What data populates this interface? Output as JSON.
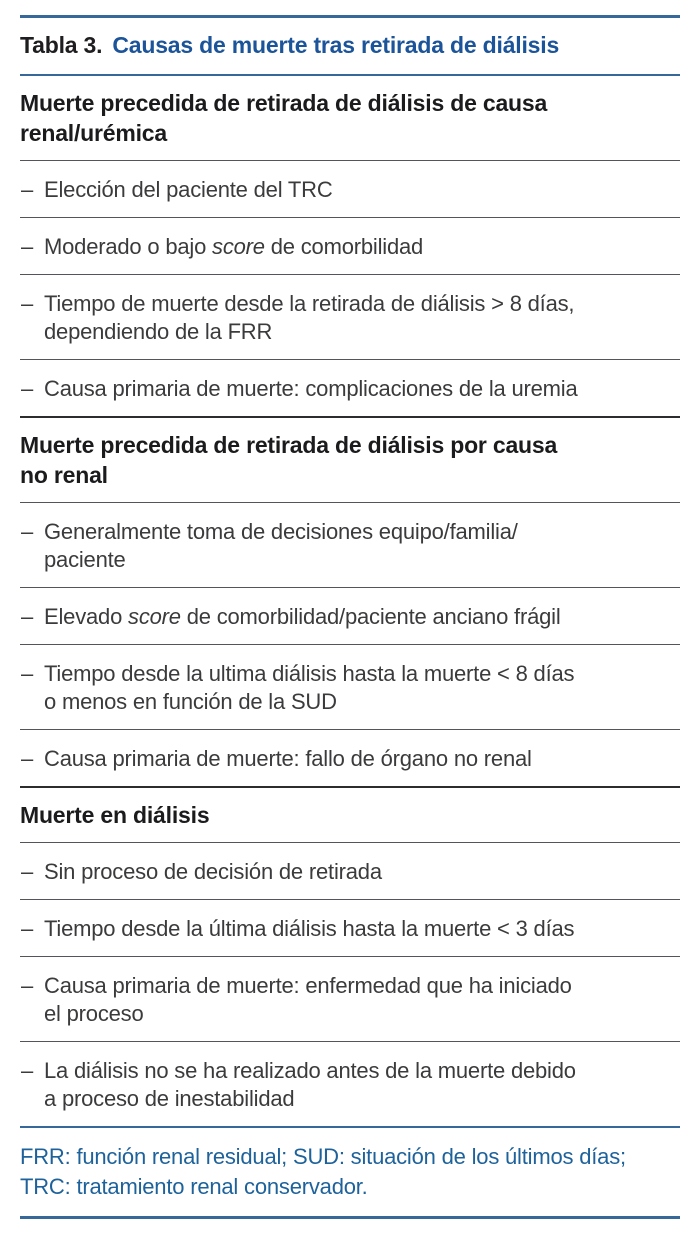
{
  "colors": {
    "accent_blue_title": "#1c5499",
    "rule_blue": "#36689a",
    "footnote_blue": "#1e629b",
    "header_text": "#1b1b1d",
    "body_text": "#3b3b3d"
  },
  "table": {
    "label": "Tabla 3.",
    "title": "Causas de muerte tras retirada de diálisis",
    "bullet": "–",
    "sections": [
      {
        "header_lines": [
          "Muerte precedida de retirada de diálisis de causa",
          "renal/urémica"
        ],
        "items": [
          {
            "lines": [
              [
                {
                  "text": "Elección del paciente del TRC"
                }
              ]
            ]
          },
          {
            "lines": [
              [
                {
                  "text": "Moderado o bajo "
                },
                {
                  "text": "score",
                  "italic": true
                },
                {
                  "text": " de comorbilidad"
                }
              ]
            ]
          },
          {
            "lines": [
              [
                {
                  "text": "Tiempo de muerte desde la retirada de diálisis > 8 días,"
                }
              ],
              [
                {
                  "text": "dependiendo de la FRR"
                }
              ]
            ]
          },
          {
            "lines": [
              [
                {
                  "text": "Causa primaria de muerte: complicaciones de la uremia"
                }
              ]
            ]
          }
        ]
      },
      {
        "header_lines": [
          "Muerte precedida de retirada de diálisis por causa",
          "no renal"
        ],
        "items": [
          {
            "lines": [
              [
                {
                  "text": "Generalmente toma de decisiones equipo/familia/"
                }
              ],
              [
                {
                  "text": "paciente"
                }
              ]
            ]
          },
          {
            "lines": [
              [
                {
                  "text": "Elevado "
                },
                {
                  "text": "score",
                  "italic": true
                },
                {
                  "text": " de comorbilidad/paciente anciano frágil"
                }
              ]
            ]
          },
          {
            "lines": [
              [
                {
                  "text": "Tiempo desde la ultima diálisis hasta la muerte < 8 días"
                }
              ],
              [
                {
                  "text": "o menos en función de la SUD"
                }
              ]
            ]
          },
          {
            "lines": [
              [
                {
                  "text": "Causa primaria de muerte: fallo de órgano no renal"
                }
              ]
            ]
          }
        ]
      },
      {
        "header_lines": [
          "Muerte en diálisis"
        ],
        "items": [
          {
            "lines": [
              [
                {
                  "text": "Sin proceso de decisión de retirada"
                }
              ]
            ]
          },
          {
            "lines": [
              [
                {
                  "text": "Tiempo desde la última diálisis hasta la muerte < 3 días"
                }
              ]
            ]
          },
          {
            "lines": [
              [
                {
                  "text": "Causa primaria de muerte: enfermedad que ha iniciado"
                }
              ],
              [
                {
                  "text": "el proceso"
                }
              ]
            ]
          },
          {
            "lines": [
              [
                {
                  "text": "La diálisis no se ha realizado antes de la muerte debido"
                }
              ],
              [
                {
                  "text": "a proceso de inestabilidad"
                }
              ]
            ]
          }
        ]
      }
    ],
    "footnote_lines": [
      "FRR: función renal residual; SUD: situación de los últimos días;",
      "TRC: tratamiento renal conservador."
    ]
  }
}
